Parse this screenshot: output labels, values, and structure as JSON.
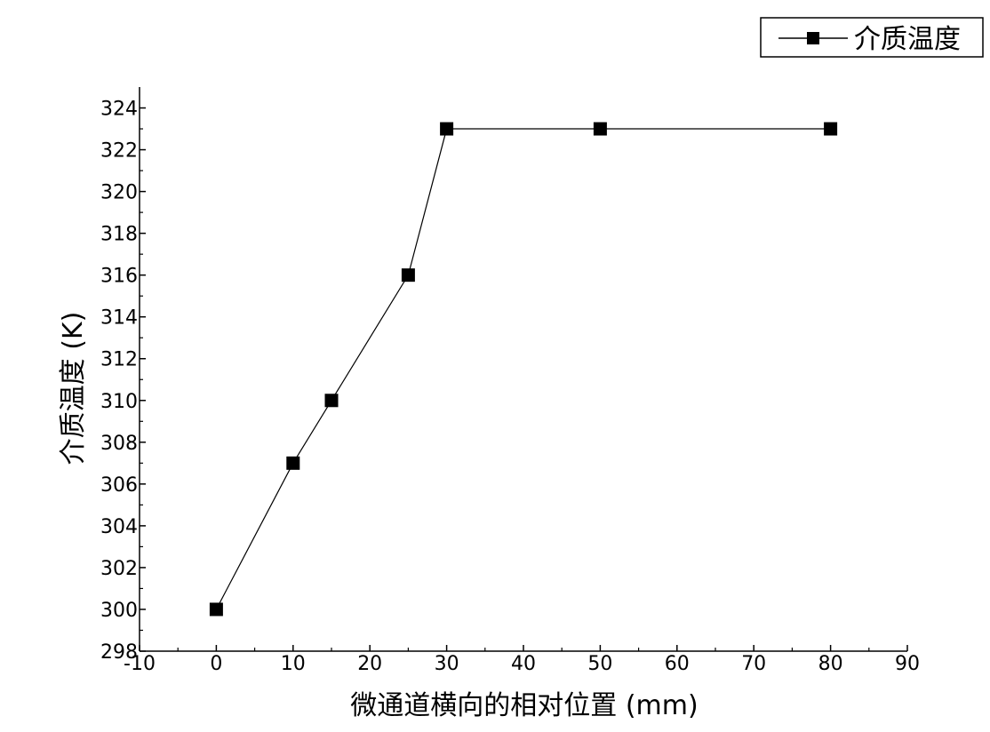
{
  "chart_data": {
    "type": "line",
    "title": "",
    "xlabel": "微通道横向的相对位置 (mm)",
    "ylabel": "介质温度 (K)",
    "xlim": [
      -10,
      90
    ],
    "ylim": [
      298,
      325
    ],
    "xticks": [
      -10,
      0,
      10,
      20,
      30,
      40,
      50,
      60,
      70,
      80,
      90
    ],
    "yticks": [
      298,
      300,
      302,
      304,
      306,
      308,
      310,
      312,
      314,
      316,
      318,
      320,
      322,
      324
    ],
    "grid": false,
    "legend_position": "top-right",
    "series": [
      {
        "name": "介质温度",
        "marker": "square",
        "color": "#000000",
        "x": [
          0,
          10,
          15,
          25,
          30,
          50,
          80
        ],
        "y": [
          300,
          307,
          310,
          316,
          323,
          323,
          323
        ]
      }
    ]
  }
}
